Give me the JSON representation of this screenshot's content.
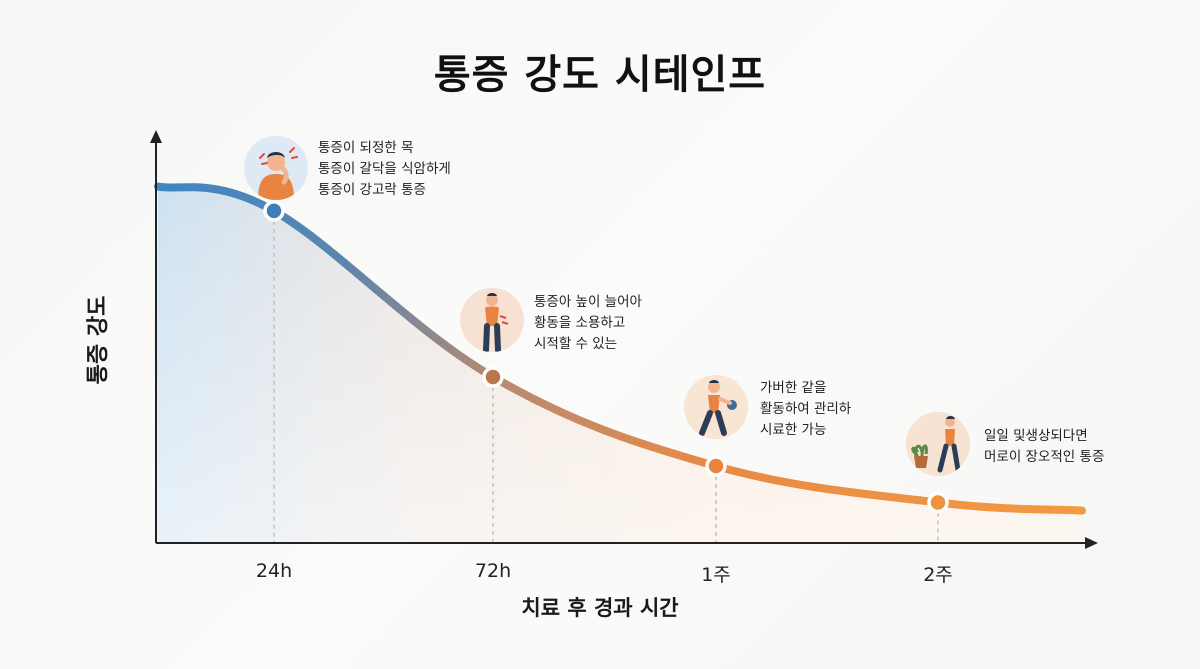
{
  "title": "통증 강도 시테인프",
  "chart_data": {
    "type": "area",
    "title": "통증 강도 시테인프",
    "xlabel": "치료 후 경과 시간",
    "ylabel": "통증 강도",
    "categories": [
      "24h",
      "72h",
      "1주",
      "2주"
    ],
    "grid": false,
    "series": [
      {
        "values": [
          82,
          41,
          19,
          10
        ]
      }
    ],
    "annotations": [
      {
        "at": "24h",
        "icon": "person-neck-pain-icon",
        "lines": [
          "통증이 되정한 목",
          "통증이 갈닥을 식암하게",
          "통증이 강고락 통증"
        ]
      },
      {
        "at": "72h",
        "icon": "person-back-pain-icon",
        "lines": [
          "통증아 높이 늘어아",
          "황동을 소용하고",
          "시적할 수 있는"
        ]
      },
      {
        "at": "1주",
        "icon": "person-walking-icon",
        "lines": [
          "가버한 같을",
          "활동하여 관리하",
          "시료한 가능"
        ]
      },
      {
        "at": "2주",
        "icon": "person-walking-plant-icon",
        "lines": [
          "일일 및생상되다면",
          "머로이 장오적인 통증"
        ]
      }
    ],
    "colors": {
      "start": "#3f86c4",
      "mid": "#b88a72",
      "end": "#f0923b",
      "axis": "#222222"
    }
  }
}
